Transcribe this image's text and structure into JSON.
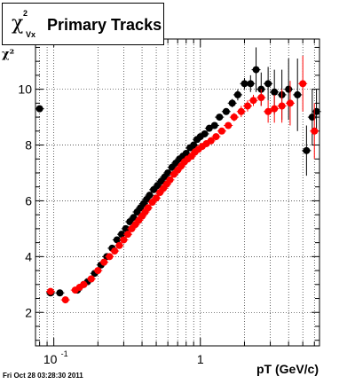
{
  "chart_data": {
    "type": "scatter",
    "title": "Primary Tracks",
    "title_symbol": "χ",
    "title_sup": "2",
    "title_sub": "Vx",
    "ylabel": "χ²",
    "xlabel": "pT (GeV/c)",
    "xscale": "log",
    "xlim": [
      0.075,
      6.5
    ],
    "ylim": [
      0.8,
      11.8
    ],
    "yticks": [
      2,
      4,
      6,
      8,
      10
    ],
    "xticks": [
      {
        "value": 0.1,
        "label": "10",
        "sup": "-1"
      },
      {
        "value": 1,
        "label": "1"
      }
    ],
    "grid": true,
    "series": [
      {
        "color": "#000000",
        "x": [
          0.08,
          0.095,
          0.11,
          0.145,
          0.16,
          0.17,
          0.19,
          0.21,
          0.23,
          0.25,
          0.27,
          0.29,
          0.31,
          0.33,
          0.35,
          0.37,
          0.39,
          0.41,
          0.43,
          0.45,
          0.48,
          0.51,
          0.54,
          0.57,
          0.6,
          0.64,
          0.68,
          0.72,
          0.76,
          0.8,
          0.85,
          0.9,
          0.95,
          1.0,
          1.07,
          1.15,
          1.25,
          1.35,
          1.5,
          1.65,
          1.8,
          2.0,
          2.2,
          2.4,
          2.6,
          2.9,
          3.2,
          3.6,
          4.0,
          4.6,
          5.3,
          5.8,
          6.2
        ],
        "y": [
          9.3,
          2.7,
          2.7,
          2.8,
          3.0,
          3.1,
          3.4,
          3.7,
          4.0,
          4.3,
          4.6,
          4.8,
          5.0,
          5.25,
          5.4,
          5.6,
          5.75,
          5.9,
          6.05,
          6.2,
          6.4,
          6.55,
          6.7,
          6.85,
          7.0,
          7.2,
          7.35,
          7.5,
          7.6,
          7.7,
          7.9,
          8.0,
          8.2,
          8.3,
          8.4,
          8.6,
          8.7,
          9.0,
          9.2,
          9.5,
          9.8,
          10.2,
          10.2,
          10.7,
          10.0,
          10.2,
          9.9,
          9.8,
          10.0,
          9.8,
          7.8,
          9.0,
          9.2
        ],
        "yerr": [
          0.05,
          0.05,
          0.05,
          0.05,
          0.05,
          0.05,
          0.05,
          0.05,
          0.05,
          0.05,
          0.05,
          0.05,
          0.05,
          0.05,
          0.05,
          0.05,
          0.05,
          0.05,
          0.05,
          0.05,
          0.05,
          0.05,
          0.05,
          0.05,
          0.05,
          0.05,
          0.05,
          0.05,
          0.05,
          0.05,
          0.05,
          0.05,
          0.05,
          0.05,
          0.05,
          0.05,
          0.08,
          0.1,
          0.1,
          0.15,
          0.2,
          0.2,
          0.3,
          0.8,
          0.6,
          0.6,
          0.8,
          0.9,
          1.1,
          1.3,
          0.9,
          1.0,
          0.8
        ]
      },
      {
        "color": "#ff0000",
        "x": [
          0.095,
          0.12,
          0.14,
          0.15,
          0.16,
          0.18,
          0.2,
          0.22,
          0.24,
          0.26,
          0.28,
          0.3,
          0.32,
          0.34,
          0.36,
          0.38,
          0.4,
          0.42,
          0.44,
          0.47,
          0.5,
          0.53,
          0.56,
          0.59,
          0.62,
          0.66,
          0.7,
          0.74,
          0.78,
          0.82,
          0.87,
          0.92,
          0.97,
          1.03,
          1.1,
          1.18,
          1.28,
          1.4,
          1.55,
          1.7,
          1.9,
          2.1,
          2.3,
          2.6,
          2.9,
          3.2,
          3.6,
          4.1,
          5.0,
          6.0
        ],
        "y": [
          2.75,
          2.45,
          2.8,
          2.9,
          3.0,
          3.2,
          3.5,
          3.8,
          4.0,
          4.2,
          4.4,
          4.6,
          4.8,
          5.0,
          5.15,
          5.3,
          5.45,
          5.6,
          5.75,
          5.95,
          6.1,
          6.3,
          6.45,
          6.6,
          6.75,
          6.95,
          7.1,
          7.25,
          7.4,
          7.5,
          7.6,
          7.75,
          7.85,
          7.95,
          8.05,
          8.15,
          8.3,
          8.5,
          8.7,
          9.0,
          9.2,
          9.4,
          9.6,
          9.7,
          9.2,
          9.3,
          9.4,
          9.5,
          10.2,
          8.5
        ],
        "yerr": [
          0.05,
          0.05,
          0.05,
          0.05,
          0.05,
          0.05,
          0.05,
          0.05,
          0.05,
          0.05,
          0.05,
          0.05,
          0.05,
          0.05,
          0.05,
          0.05,
          0.05,
          0.05,
          0.05,
          0.05,
          0.05,
          0.05,
          0.05,
          0.05,
          0.05,
          0.05,
          0.05,
          0.05,
          0.05,
          0.05,
          0.05,
          0.05,
          0.05,
          0.05,
          0.05,
          0.05,
          0.06,
          0.08,
          0.1,
          0.15,
          0.2,
          0.2,
          0.2,
          0.3,
          0.4,
          0.5,
          0.6,
          0.8,
          1.0,
          1.0
        ]
      }
    ]
  },
  "footer": "Fri Oct 28 03:28:30 2011"
}
